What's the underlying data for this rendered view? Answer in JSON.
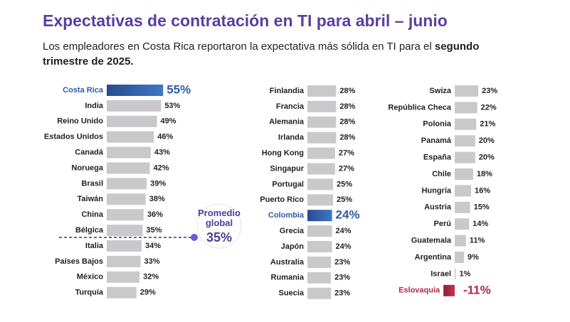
{
  "title": "Expectativas de contratación en TI para abril – junio",
  "subtitle": {
    "text": "Los empleadores en Costa Rica reportaron la expectativa más sólida en TI para el",
    "bold": "segundo trimestre de 2025."
  },
  "annotation": {
    "label": "Promedio global",
    "value": 35,
    "value_label": "35%",
    "color": "#6a5ad6"
  },
  "chart_data": [
    {
      "type": "bar",
      "orientation": "horizontal",
      "color": "#c9c9cc",
      "highlight": {
        "index": 0,
        "color": "#3d78c4",
        "text_color": "#2e5aa8"
      },
      "categories": [
        "Costa Rica",
        "India",
        "Reino Unido",
        "Estados Unidos",
        "Canadá",
        "Noruega",
        "Brasil",
        "Taiwán",
        "China",
        "Bélgica",
        "Italia",
        "Países Bajos",
        "México",
        "Turquía"
      ],
      "values": [
        55,
        53,
        49,
        46,
        43,
        42,
        39,
        38,
        36,
        35,
        34,
        33,
        32,
        29
      ],
      "value_labels": [
        "55%",
        "53%",
        "49%",
        "46%",
        "43%",
        "42%",
        "39%",
        "38%",
        "36%",
        "35%",
        "34%",
        "33%",
        "32%",
        "29%"
      ]
    },
    {
      "type": "bar",
      "orientation": "horizontal",
      "color": "#c9c9cc",
      "highlight": {
        "index": 8,
        "color": "#3d78c4",
        "text_color": "#2e5aa8"
      },
      "categories": [
        "Finlandia",
        "Francia",
        "Alemania",
        "Irlanda",
        "Hong Kong",
        "Singapur",
        "Portugal",
        "Puerto Rico",
        "Colombia",
        "Grecia",
        "Japón",
        "Australia",
        "Rumania",
        "Suecia"
      ],
      "values": [
        28,
        28,
        28,
        28,
        27,
        27,
        25,
        25,
        24,
        24,
        24,
        23,
        23,
        23
      ],
      "value_labels": [
        "28%",
        "28%",
        "28%",
        "28%",
        "27%",
        "27%",
        "25%",
        "25%",
        "24%",
        "24%",
        "24%",
        "23%",
        "23%",
        "23%"
      ]
    },
    {
      "type": "bar",
      "orientation": "horizontal",
      "color": "#c9c9cc",
      "highlight": {
        "index": 12,
        "color": "#c8334e",
        "text_color": "#b02a45"
      },
      "categories": [
        "Swiza",
        "República Checa",
        "Polonia",
        "Panamá",
        "España",
        "Chile",
        "Hungría",
        "Austria",
        "Perú",
        "Guatemala",
        "Argentina",
        "Israel",
        "Eslovaquia"
      ],
      "values": [
        23,
        22,
        21,
        20,
        20,
        18,
        16,
        15,
        14,
        11,
        9,
        1,
        -11
      ],
      "value_labels": [
        "23%",
        "22%",
        "21%",
        "20%",
        "20%",
        "18%",
        "16%",
        "15%",
        "14%",
        "11%",
        "9%",
        "1%",
        "-11%"
      ]
    }
  ]
}
